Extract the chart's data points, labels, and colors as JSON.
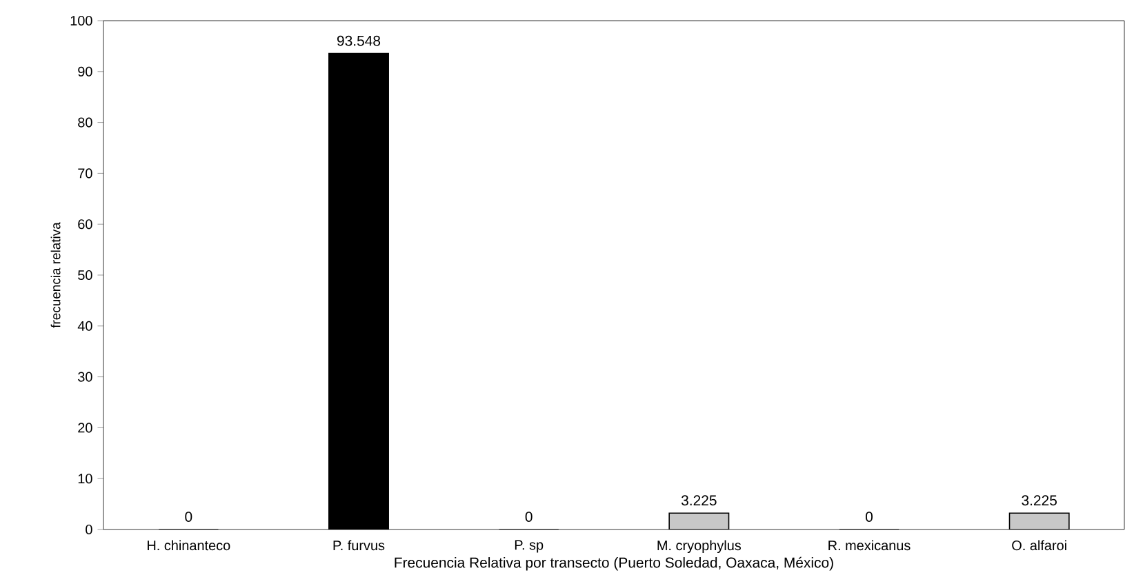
{
  "chart_data": {
    "type": "bar",
    "xlabel": "Frecuencia Relativa por transecto (Puerto Soledad, Oaxaca, México)",
    "ylabel": "frecuencia relativa",
    "categories": [
      "H. chinanteco",
      "P. furvus",
      "P. sp",
      "M. cryophylus",
      "R. mexicanus",
      "O. alfaroi"
    ],
    "values": [
      0,
      93.548,
      0,
      3.225,
      0,
      3.225
    ],
    "value_labels": [
      "0",
      "93.548",
      "0",
      "3.225",
      "0",
      "3.225"
    ],
    "colors": [
      "#c8c8c8",
      "#000000",
      "#c8c8c8",
      "#c8c8c8",
      "#c8c8c8",
      "#c8c8c8"
    ],
    "ylim": [
      0,
      100
    ],
    "yticks": [
      0,
      10,
      20,
      30,
      40,
      50,
      60,
      70,
      80,
      90,
      100
    ],
    "grid": false
  }
}
